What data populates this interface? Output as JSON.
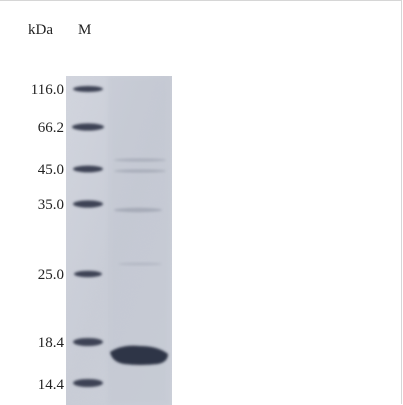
{
  "header": {
    "unit_label": "kDa",
    "marker_lane_label": "M"
  },
  "marker_ladder": [
    {
      "label": "116.0",
      "kda": 116.0
    },
    {
      "label": "66.2",
      "kda": 66.2
    },
    {
      "label": "45.0",
      "kda": 45.0
    },
    {
      "label": "35.0",
      "kda": 35.0
    },
    {
      "label": "25.0",
      "kda": 25.0
    },
    {
      "label": "18.4",
      "kda": 18.4
    },
    {
      "label": "14.4",
      "kda": 14.4
    }
  ],
  "colors": {
    "gel_background": "#cfd3dc",
    "band_dark": "#3d4354",
    "band_sample": "#2f3646"
  }
}
